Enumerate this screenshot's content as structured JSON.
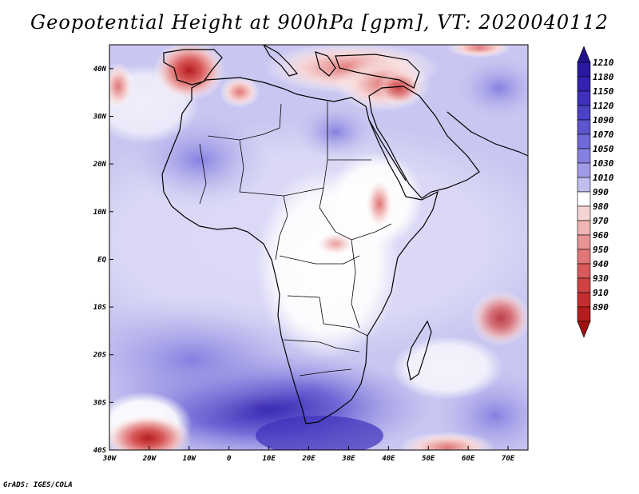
{
  "title": "Geopotential Height at 900hPa [gpm], VT: 2020040112",
  "credit": "GrADS: IGES/COLA",
  "map": {
    "region": "Africa",
    "lon_range": [
      -30,
      75
    ],
    "lat_range": [
      -40,
      45
    ],
    "lon_ticks": [
      {
        "lon": -30,
        "label": "30W"
      },
      {
        "lon": -20,
        "label": "20W"
      },
      {
        "lon": -10,
        "label": "10W"
      },
      {
        "lon": 0,
        "label": "0"
      },
      {
        "lon": 10,
        "label": "10E"
      },
      {
        "lon": 20,
        "label": "20E"
      },
      {
        "lon": 30,
        "label": "30E"
      },
      {
        "lon": 40,
        "label": "40E"
      },
      {
        "lon": 50,
        "label": "50E"
      },
      {
        "lon": 60,
        "label": "60E"
      },
      {
        "lon": 70,
        "label": "70E"
      }
    ],
    "lat_ticks": [
      {
        "lat": 40,
        "label": "40N"
      },
      {
        "lat": 30,
        "label": "30N"
      },
      {
        "lat": 20,
        "label": "20N"
      },
      {
        "lat": 10,
        "label": "10N"
      },
      {
        "lat": 0,
        "label": "EQ"
      },
      {
        "lat": -10,
        "label": "10S"
      },
      {
        "lat": -20,
        "label": "20S"
      },
      {
        "lat": -30,
        "label": "30S"
      },
      {
        "lat": -40,
        "label": "40S"
      }
    ]
  },
  "colorbar": {
    "levels": [
      {
        "label": "1210",
        "color": "#2a18a0"
      },
      {
        "label": "1180",
        "color": "#3322b0"
      },
      {
        "label": "1150",
        "color": "#3e30bb"
      },
      {
        "label": "1120",
        "color": "#4c40c4"
      },
      {
        "label": "1090",
        "color": "#5d55cc"
      },
      {
        "label": "1070",
        "color": "#7068d6"
      },
      {
        "label": "1050",
        "color": "#8680e0"
      },
      {
        "label": "1030",
        "color": "#a19ce8"
      },
      {
        "label": "1010",
        "color": "#c1beef"
      },
      {
        "label": "990",
        "color": "#ffffff"
      },
      {
        "label": "980",
        "color": "#f7d4d4"
      },
      {
        "label": "970",
        "color": "#efb4b4"
      },
      {
        "label": "960",
        "color": "#e89494"
      },
      {
        "label": "950",
        "color": "#e07676"
      },
      {
        "label": "940",
        "color": "#d85a5a"
      },
      {
        "label": "930",
        "color": "#cf4242"
      },
      {
        "label": "910",
        "color": "#c42e2e"
      },
      {
        "label": "890",
        "color": "#b51d1d"
      }
    ],
    "top_arrow_color": "#22128c",
    "bottom_arrow_color": "#a01010"
  },
  "field_features": [
    {
      "name": "iberia-low",
      "lon": -9,
      "lat": 39,
      "level": 6
    },
    {
      "name": "med-low",
      "lon": 10,
      "lat": 41,
      "level": 3
    },
    {
      "name": "turkey-low",
      "lon": 32,
      "lat": 38,
      "level": 5
    },
    {
      "name": "levant-low",
      "lon": 40,
      "lat": 34,
      "level": 4
    },
    {
      "name": "ethiopia-low",
      "lon": 37,
      "lat": 10,
      "level": 3
    },
    {
      "name": "madagascar-east-low",
      "lon": 67,
      "lat": -13,
      "level": 5
    },
    {
      "name": "south-atlantic-low",
      "lon": -20,
      "lat": -39,
      "level": 7
    },
    {
      "name": "southern-ocean-low",
      "lon": 60,
      "lat": -39,
      "level": 4
    },
    {
      "name": "west-coast-low",
      "lon": -31,
      "lat": 35,
      "level": 3
    },
    {
      "name": "south-african-high",
      "lon": 20,
      "lat": -36,
      "level": 7
    },
    {
      "name": "atlantic-high",
      "lon": -10,
      "lat": -28,
      "level": 5
    },
    {
      "name": "sahara-high",
      "lon": -5,
      "lat": 21,
      "level": 5
    },
    {
      "name": "iran-high",
      "lon": 64,
      "lat": 35,
      "level": 6
    }
  ]
}
